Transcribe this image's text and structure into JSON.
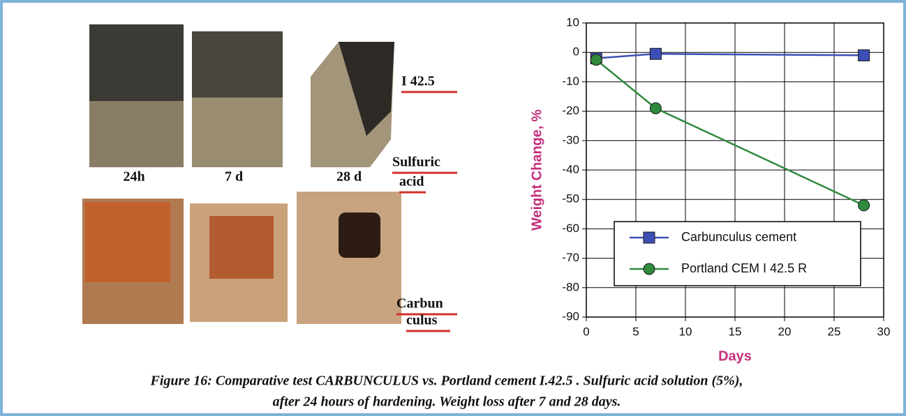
{
  "photo": {
    "time_labels": [
      "24h",
      "7 d",
      "28 d"
    ],
    "row_labels": [
      "I 42.5",
      "Sulfuric",
      "acid",
      "Carbun",
      "culus"
    ]
  },
  "chart_data": {
    "type": "line",
    "x": [
      1,
      7,
      28
    ],
    "series": [
      {
        "name": "Carbunculus cement",
        "color": "#3d4fb5",
        "marker": "square",
        "values": [
          -2,
          -0.5,
          -1
        ]
      },
      {
        "name": "Portland CEM I 42.5 R",
        "color": "#2f8a3c",
        "marker": "circle",
        "values": [
          -2.5,
          -19,
          -52
        ]
      }
    ],
    "xlabel": "Days",
    "ylabel": "Weight Change, %",
    "xlim": [
      0,
      30
    ],
    "xticks": [
      0,
      5,
      10,
      15,
      20,
      25,
      30
    ],
    "ylim": [
      -90,
      10
    ],
    "yticks": [
      -90,
      -80,
      -70,
      -60,
      -50,
      -40,
      -30,
      -20,
      -10,
      0,
      10
    ],
    "grid": true,
    "legend": "lower left"
  },
  "caption": [
    "Figure 16: Comparative test CARBUNCULUS vs. Portland cement I.42.5 . Sulfuric acid solution (5%),",
    "after 24 hours of hardening. Weight loss after 7 and 28 days."
  ]
}
